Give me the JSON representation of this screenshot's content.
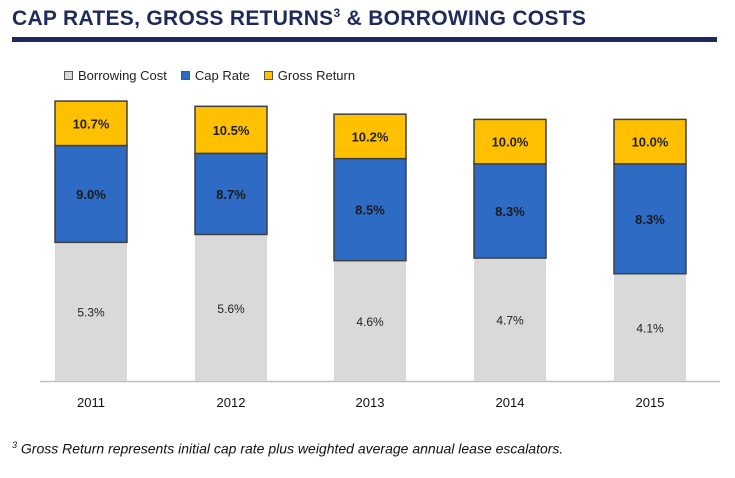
{
  "header": {
    "title_main": "CAP RATES, GROSS RETURNS",
    "title_sup": "3",
    "title_tail": " & BORROWING COSTS"
  },
  "colors": {
    "title": "#1f2a5c",
    "borrowing_cost": "#d9d9d9",
    "cap_rate": "#2e6bc4",
    "gross_return": "#ffc000",
    "bar_border": "#404040",
    "axis": "#bfbfbf"
  },
  "chart_data": {
    "type": "bar",
    "stacked": true,
    "categories": [
      "2011",
      "2012",
      "2013",
      "2014",
      "2015"
    ],
    "series": [
      {
        "name": "Borrowing Cost",
        "values": [
          5.3,
          5.6,
          4.6,
          4.7,
          4.1
        ],
        "labels": [
          "5.3%",
          "5.6%",
          "4.6%",
          "4.7%",
          "4.1%"
        ]
      },
      {
        "name": "Cap Rate",
        "values": [
          9.0,
          8.7,
          8.5,
          8.3,
          8.3
        ],
        "labels": [
          "9.0%",
          "8.7%",
          "8.5%",
          "8.3%",
          "8.3%"
        ]
      },
      {
        "name": "Gross Return",
        "values": [
          10.7,
          10.5,
          10.2,
          10.0,
          10.0
        ],
        "labels": [
          "10.7%",
          "10.5%",
          "10.2%",
          "10.0%",
          "10.0%"
        ]
      }
    ],
    "legend_position": "top-left",
    "grid": false
  },
  "footnote": {
    "marker": "3",
    "text": " Gross Return represents initial cap rate plus weighted average annual lease escalators."
  }
}
